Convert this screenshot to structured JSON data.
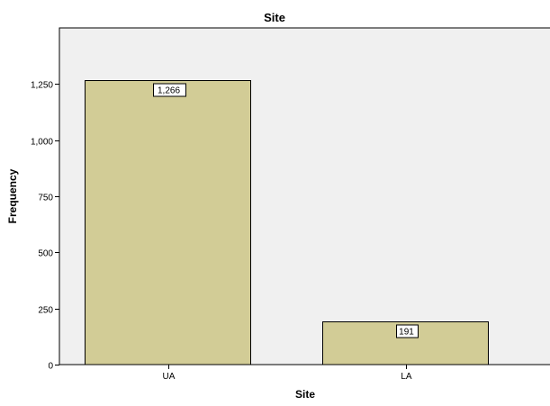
{
  "chart_data": {
    "type": "bar",
    "title": "Site",
    "xlabel": "Site",
    "ylabel": "Frequency",
    "categories": [
      "UA",
      "LA"
    ],
    "values": [
      1266,
      191
    ],
    "data_labels": [
      "1,266",
      "191"
    ],
    "ylim": [
      0,
      1500
    ],
    "yticks": [
      0,
      250,
      500,
      750,
      1000,
      1250
    ],
    "ytick_labels": [
      "0",
      "250",
      "500",
      "750",
      "1,000",
      "1,250"
    ],
    "grid": false,
    "legend": "none",
    "colors": {
      "bar_fill": "#d2cc96",
      "bar_stroke": "#000000",
      "plot_background": "#f0f0f0",
      "axis": "#000000",
      "label_box_fill": "#ffffff"
    }
  }
}
